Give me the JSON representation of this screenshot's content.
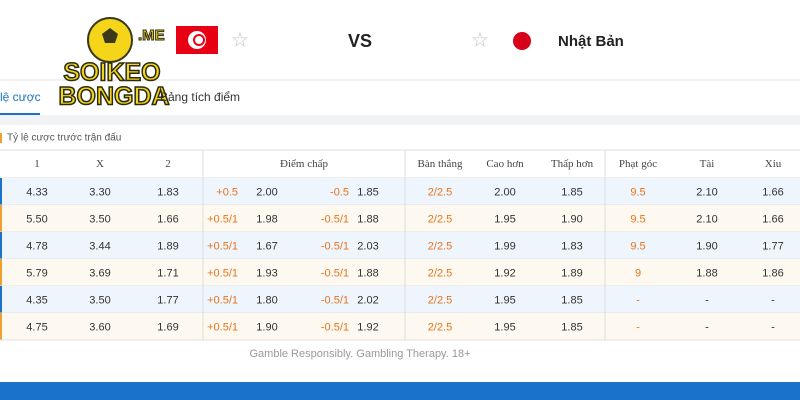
{
  "header": {
    "logo": {
      "top": ".ME",
      "line1": "SOIKEO",
      "line2": "BONGDA"
    },
    "vs": "VS",
    "away_team": "Nhật Bản"
  },
  "tabs": [
    "lệ cược",
    "Bảng tích điểm"
  ],
  "section_title": "Tỷ lệ cược trước trận đấu",
  "table": {
    "columns": [
      "1",
      "X",
      "2",
      "Điểm chấp",
      "Bàn thắng",
      "Cao hơn",
      "Thấp hơn",
      "Phạt góc",
      "Tài",
      "Xỉu"
    ],
    "rows": [
      [
        "4.33",
        "3.30",
        "1.83",
        "+0.5",
        "2.00",
        "-0.5",
        "1.85",
        "2/2.5",
        "2.00",
        "1.85",
        "9.5",
        "2.10",
        "1.66"
      ],
      [
        "5.50",
        "3.50",
        "1.66",
        "+0.5/1",
        "1.98",
        "-0.5/1",
        "1.88",
        "2/2.5",
        "1.95",
        "1.90",
        "9.5",
        "2.10",
        "1.66"
      ],
      [
        "4.78",
        "3.44",
        "1.89",
        "+0.5/1",
        "1.67",
        "-0.5/1",
        "2.03",
        "2/2.5",
        "1.99",
        "1.83",
        "9.5",
        "1.90",
        "1.77"
      ],
      [
        "5.79",
        "3.69",
        "1.71",
        "+0.5/1",
        "1.93",
        "-0.5/1",
        "1.88",
        "2/2.5",
        "1.92",
        "1.89",
        "9",
        "1.88",
        "1.86"
      ],
      [
        "4.35",
        "3.50",
        "1.77",
        "+0.5/1",
        "1.80",
        "-0.5/1",
        "2.02",
        "2/2.5",
        "1.95",
        "1.85",
        "-",
        "-",
        "-"
      ],
      [
        "4.75",
        "3.60",
        "1.69",
        "+0.5/1",
        "1.90",
        "-0.5/1",
        "1.92",
        "2/2.5",
        "1.95",
        "1.85",
        "-",
        "-",
        "-"
      ]
    ]
  },
  "footer": "Gamble Responsibly. Gambling Therapy. 18+"
}
